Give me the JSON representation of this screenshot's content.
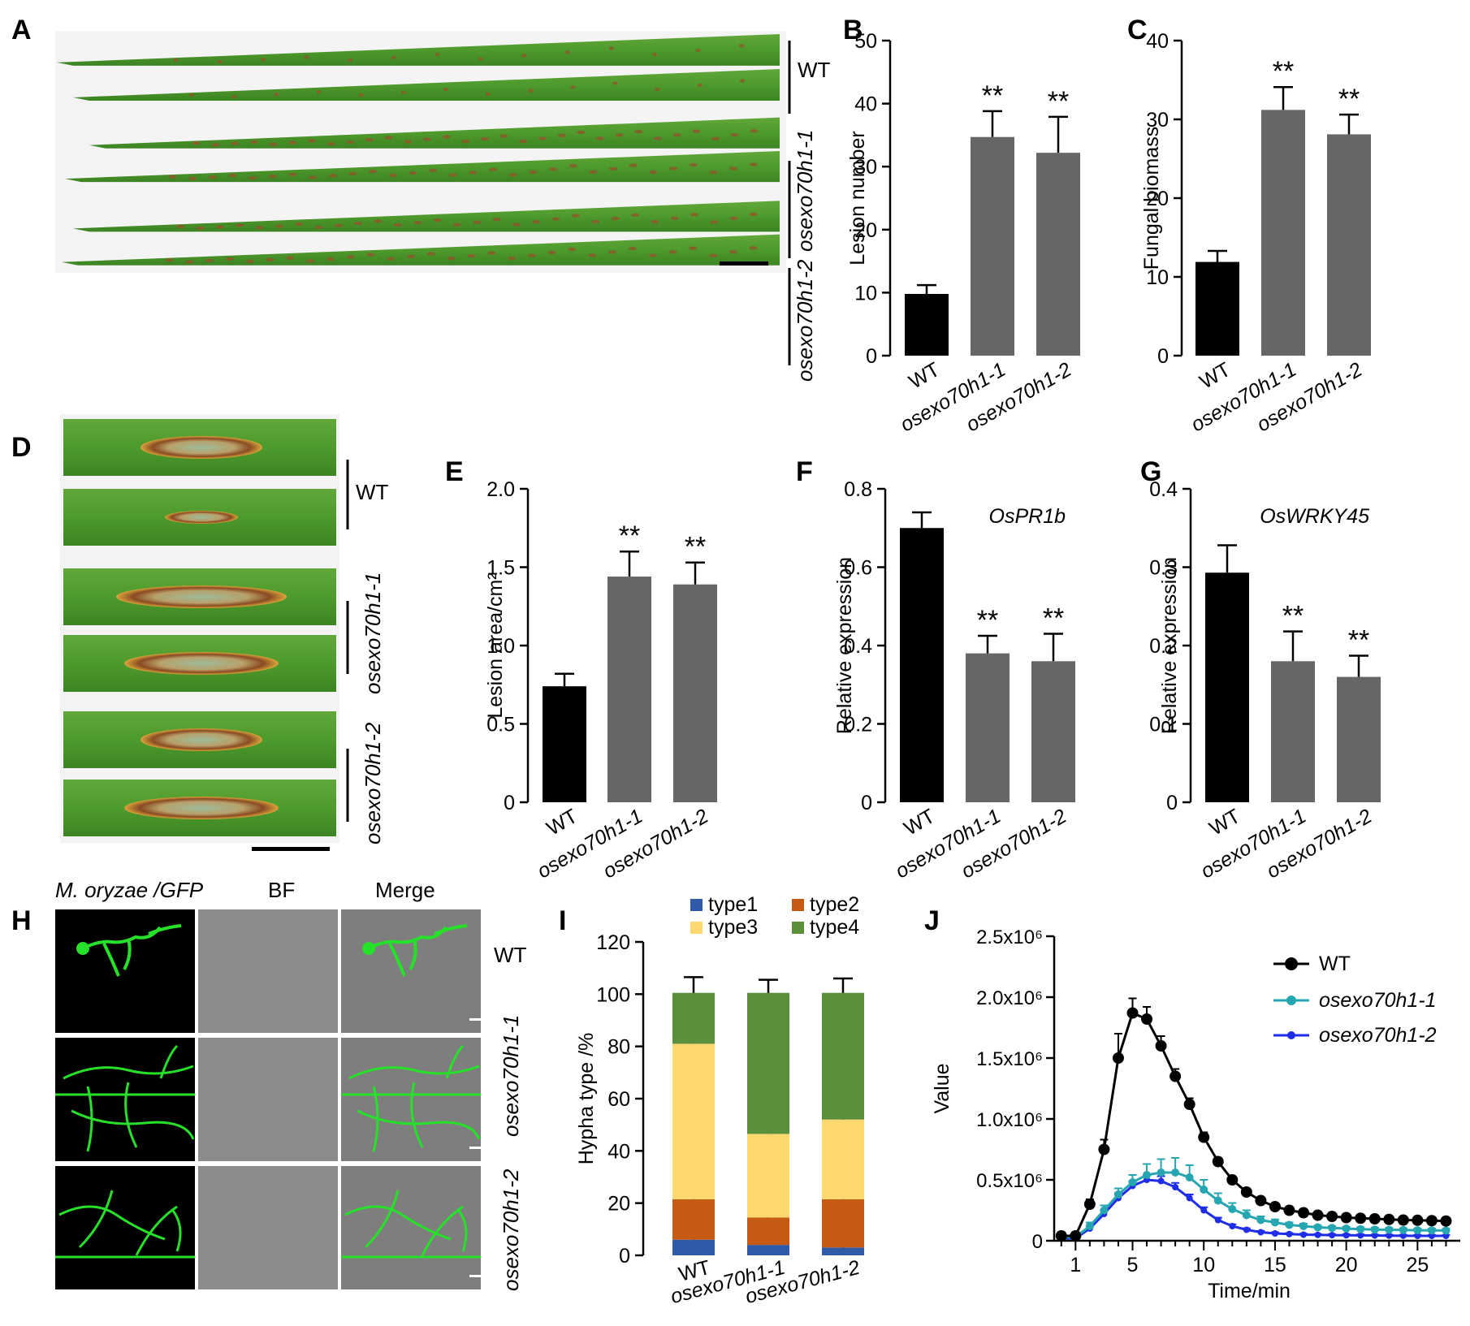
{
  "panel_letters": [
    "A",
    "B",
    "C",
    "D",
    "E",
    "F",
    "G",
    "H",
    "I",
    "J"
  ],
  "colors": {
    "wt": "#000000",
    "mutant": "#666666",
    "leaf": "#4e9a2c",
    "leaf_dark": "#3a7d1f",
    "lesion": "#8a5a2a",
    "type1": "#2e5aa8",
    "type2": "#c65a12",
    "type3": "#fcd86e",
    "type4": "#5a8f3c",
    "line_m1": "#26a6b0",
    "line_m2": "#1f2ee6",
    "gfp": "#27e02a"
  },
  "panel_A": {
    "labels": [
      "WT",
      "osexo70h1-1",
      "osexo70h1-2"
    ]
  },
  "panel_D": {
    "labels": [
      "WT",
      "osexo70h1-1",
      "osexo70h1-2"
    ]
  },
  "panel_H": {
    "columns": [
      "M. oryzae /GFP",
      "BF",
      "Merge"
    ],
    "rows": [
      "WT",
      "osexo70h1-1",
      "osexo70h1-2"
    ]
  },
  "chart_data": [
    {
      "panel": "B",
      "type": "bar",
      "categories": [
        "WT",
        "osexo70h1-1",
        "osexo70h1-2"
      ],
      "values": [
        9.8,
        34.7,
        32.2
      ],
      "errors": [
        1.4,
        4.1,
        5.7
      ],
      "sig": [
        "",
        "**",
        "**"
      ],
      "ylabel": "Lesion number",
      "ylim": [
        0,
        50
      ],
      "yticks": [
        0,
        10,
        20,
        30,
        40,
        50
      ],
      "title": ""
    },
    {
      "panel": "C",
      "type": "bar",
      "categories": [
        "WT",
        "osexo70h1-1",
        "osexo70h1-2"
      ],
      "values": [
        11.9,
        31.2,
        28.1
      ],
      "errors": [
        1.4,
        2.9,
        2.5
      ],
      "sig": [
        "",
        "**",
        "**"
      ],
      "ylabel": "Fungal biomass",
      "ylim": [
        0,
        40
      ],
      "yticks": [
        0,
        10,
        20,
        30,
        40
      ],
      "title": ""
    },
    {
      "panel": "E",
      "type": "bar",
      "categories": [
        "WT",
        "osexo70h1-1",
        "osexo70h1-2"
      ],
      "values": [
        0.74,
        1.44,
        1.39
      ],
      "errors": [
        0.08,
        0.16,
        0.14
      ],
      "sig": [
        "",
        "**",
        "**"
      ],
      "ylabel": "Lesion area/cm²",
      "ylim": [
        0,
        2.0
      ],
      "yticks": [
        "0",
        "0.5",
        "1.0",
        "1.5",
        "2.0"
      ],
      "title": ""
    },
    {
      "panel": "F",
      "type": "bar",
      "categories": [
        "WT",
        "osexo70h1-1",
        "osexo70h1-2"
      ],
      "values": [
        0.7,
        0.38,
        0.36
      ],
      "errors": [
        0.04,
        0.045,
        0.07
      ],
      "sig": [
        "",
        "**",
        "**"
      ],
      "ylabel": "Relative expression",
      "ylim": [
        0,
        0.8
      ],
      "yticks": [
        "0",
        "0.2",
        "0.4",
        "0.6",
        "0.8"
      ],
      "title": "OsPR1b"
    },
    {
      "panel": "G",
      "type": "bar",
      "categories": [
        "WT",
        "osexo70h1-1",
        "osexo70h1-2"
      ],
      "values": [
        0.293,
        0.18,
        0.16
      ],
      "errors": [
        0.035,
        0.038,
        0.027
      ],
      "sig": [
        "",
        "**",
        "**"
      ],
      "ylabel": "Relative expression",
      "ylim": [
        0,
        0.4
      ],
      "yticks": [
        "0",
        "0.1",
        "0.2",
        "0.3",
        "0.4"
      ],
      "title": "OsWRKY45"
    },
    {
      "panel": "I",
      "type": "bar",
      "stacked": true,
      "categories": [
        "WT",
        "osexo70h1-1",
        "osexo70h1-2"
      ],
      "series": [
        {
          "name": "type1",
          "values": [
            6,
            4,
            3
          ],
          "errors": [
            3.5,
            3,
            2
          ]
        },
        {
          "name": "type2",
          "values": [
            15.5,
            10.5,
            18.5
          ],
          "errors": [
            4,
            3.5,
            3
          ]
        },
        {
          "name": "type3",
          "values": [
            59.5,
            32,
            30.5
          ],
          "errors": [
            4.5,
            3.5,
            4
          ]
        },
        {
          "name": "type4",
          "values": [
            19.5,
            54,
            48.5
          ],
          "errors": [
            6,
            5,
            5.5
          ]
        }
      ],
      "ylabel": "Hypha type /%",
      "ylim": [
        0,
        120
      ],
      "yticks": [
        0,
        20,
        40,
        60,
        80,
        100,
        120
      ],
      "legend": "top"
    },
    {
      "panel": "J",
      "type": "line",
      "xlabel": "Time/min",
      "ylabel": "Value",
      "xlim": [
        -0.5,
        28
      ],
      "ylim": [
        0,
        2500000
      ],
      "xticks": [
        1,
        5,
        10,
        15,
        20,
        25
      ],
      "yticks": [
        "0",
        "0.5x10⁶",
        "1.0x10⁶",
        "1.5x10⁶",
        "2.0x10⁶",
        "2.5x10⁶"
      ],
      "ytick_values": [
        0,
        500000,
        1000000,
        1500000,
        2000000,
        2500000
      ],
      "x": [
        0,
        1,
        2,
        3,
        4,
        5,
        6,
        7,
        8,
        9,
        10,
        11,
        12,
        13,
        14,
        15,
        16,
        17,
        18,
        19,
        20,
        21,
        22,
        23,
        24,
        25,
        26,
        27
      ],
      "series": [
        {
          "name": "WT",
          "values": [
            40000,
            40000,
            300000,
            750000,
            1500000,
            1870000,
            1820000,
            1600000,
            1350000,
            1120000,
            850000,
            650000,
            500000,
            400000,
            330000,
            280000,
            250000,
            230000,
            210000,
            200000,
            190000,
            185000,
            180000,
            175000,
            170000,
            168000,
            165000,
            162000
          ],
          "errors": [
            30000,
            30000,
            40000,
            80000,
            200000,
            120000,
            100000,
            80000,
            60000,
            50000,
            40000,
            30000,
            25000,
            20000,
            15000,
            15000,
            12000,
            10000,
            10000,
            10000,
            10000,
            10000,
            10000,
            10000,
            10000,
            10000,
            10000,
            10000
          ]
        },
        {
          "name": "osexo70h1-1",
          "values": [
            30000,
            30000,
            120000,
            250000,
            380000,
            480000,
            540000,
            560000,
            560000,
            520000,
            420000,
            330000,
            260000,
            210000,
            170000,
            150000,
            130000,
            120000,
            110000,
            105000,
            100000,
            95000,
            92000,
            90000,
            88000,
            86000,
            85000,
            84000
          ],
          "errors": [
            20000,
            20000,
            30000,
            40000,
            50000,
            60000,
            90000,
            110000,
            120000,
            100000,
            80000,
            60000,
            50000,
            40000,
            30000,
            25000,
            20000,
            20000,
            15000,
            15000,
            15000,
            15000,
            15000,
            15000,
            15000,
            15000,
            15000,
            15000
          ]
        },
        {
          "name": "osexo70h1-2",
          "values": [
            20000,
            20000,
            100000,
            220000,
            350000,
            450000,
            500000,
            490000,
            440000,
            350000,
            250000,
            170000,
            120000,
            90000,
            70000,
            60000,
            55000,
            50000,
            48000,
            46000,
            45000,
            44000,
            43000,
            42000,
            41000,
            40000,
            40000,
            40000
          ],
          "errors": [
            15000,
            15000,
            20000,
            30000,
            40000,
            40000,
            40000,
            40000,
            35000,
            30000,
            25000,
            20000,
            15000,
            12000,
            10000,
            10000,
            8000,
            8000,
            8000,
            8000,
            8000,
            8000,
            8000,
            8000,
            8000,
            8000,
            8000,
            8000
          ]
        }
      ],
      "legend": "top-right"
    }
  ]
}
